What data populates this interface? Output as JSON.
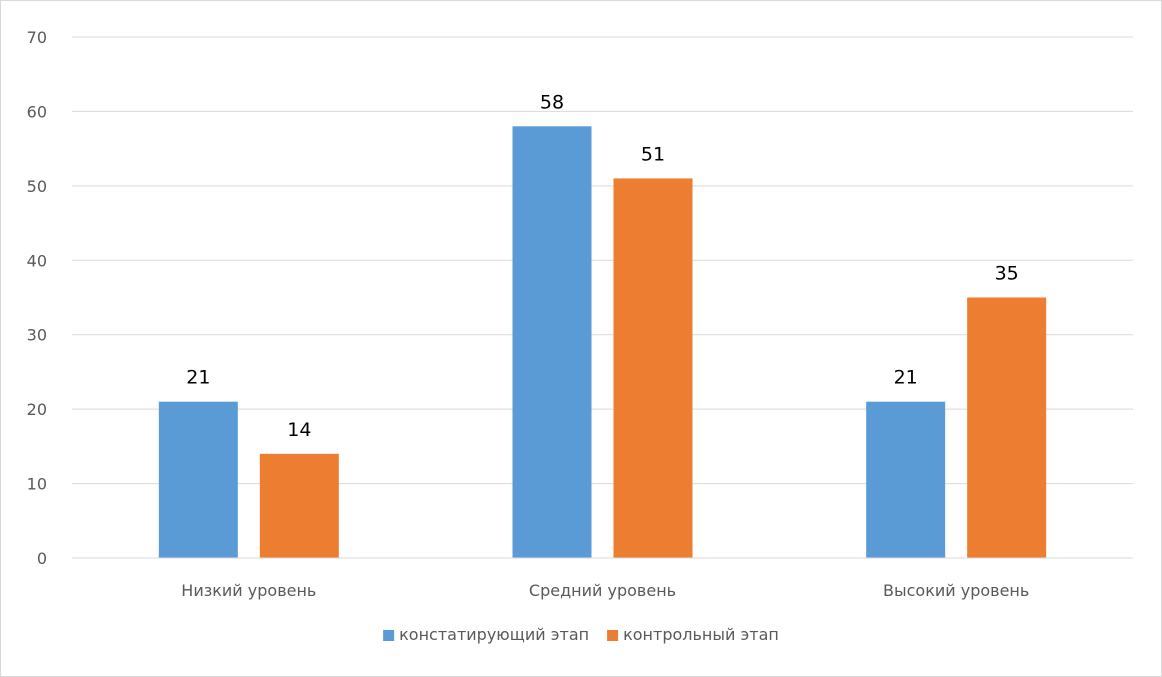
{
  "chart_data": {
    "type": "bar",
    "categories": [
      "Низкий уровень",
      "Средний уровень",
      "Высокий уровень"
    ],
    "series": [
      {
        "name": "констатирующий этап",
        "values": [
          21,
          58,
          21
        ],
        "color": "#5b9bd5"
      },
      {
        "name": "контрольный этап",
        "values": [
          14,
          51,
          35
        ],
        "color": "#ed7d31"
      }
    ],
    "ylim": [
      0,
      70
    ],
    "yticks": [
      0,
      10,
      20,
      30,
      40,
      50,
      60,
      70
    ],
    "grid": true,
    "legend": "bottom-center",
    "data_labels": true,
    "title": "",
    "xlabel": "",
    "ylabel": ""
  }
}
